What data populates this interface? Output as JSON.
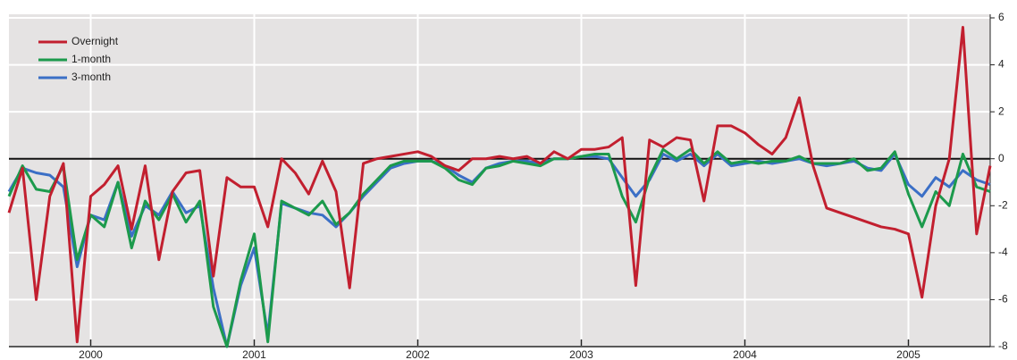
{
  "chart_data": {
    "type": "line",
    "x": [
      2000,
      2000.083,
      2000.167,
      2000.25,
      2000.333,
      2000.417,
      2000.5,
      2000.583,
      2000.667,
      2000.75,
      2000.833,
      2000.917,
      2001,
      2001.083,
      2001.167,
      2001.25,
      2001.333,
      2001.417,
      2001.5,
      2001.583,
      2001.667,
      2001.75,
      2001.833,
      2001.917,
      2002,
      2002.083,
      2002.167,
      2002.25,
      2002.333,
      2002.417,
      2002.5,
      2002.583,
      2002.667,
      2002.75,
      2002.833,
      2002.917,
      2003,
      2003.083,
      2003.167,
      2003.25,
      2003.333,
      2003.417,
      2003.5,
      2003.583,
      2003.667,
      2003.75,
      2003.833,
      2003.917,
      2004,
      2004.083,
      2004.167,
      2004.25,
      2004.333,
      2004.417,
      2004.5,
      2004.583,
      2004.667,
      2004.75,
      2004.833,
      2004.917,
      2005,
      2005.083,
      2005.167,
      2005.25,
      2005.333,
      2005.417,
      2005.5,
      2005.583,
      2005.667,
      2005.75,
      2005.833,
      2005.917,
      2006
    ],
    "series": [
      {
        "name": "Overnight",
        "color": "#c21f2f",
        "values": [
          -2.3,
          -0.4,
          -6.0,
          -1.6,
          -0.2,
          -7.8,
          -1.6,
          -1.1,
          -0.3,
          -3.0,
          -0.3,
          -4.3,
          -1.4,
          -0.6,
          -0.5,
          -5.0,
          -0.8,
          -1.2,
          -1.2,
          -2.9,
          0.0,
          -0.6,
          -1.5,
          -0.1,
          -1.4,
          -5.5,
          -0.2,
          0.0,
          0.1,
          0.2,
          0.3,
          0.1,
          -0.3,
          -0.5,
          0.0,
          0.0,
          0.1,
          0.0,
          0.1,
          -0.2,
          0.3,
          0.0,
          0.4,
          0.4,
          0.5,
          0.9,
          -5.4,
          0.8,
          0.5,
          0.9,
          0.8,
          -1.8,
          1.4,
          1.4,
          1.1,
          0.6,
          0.2,
          0.9,
          2.6,
          -0.3,
          -2.1,
          -2.3,
          -2.5,
          -2.7,
          -2.9,
          -3.0,
          -3.2,
          -5.9,
          -2.0,
          0.0,
          5.6,
          -3.2,
          -0.3
        ]
      },
      {
        "name": "1-month",
        "color": "#1c9a4c",
        "values": [
          -1.6,
          -0.3,
          -1.3,
          -1.4,
          -0.3,
          -4.3,
          -2.4,
          -2.9,
          -1.0,
          -3.8,
          -1.8,
          -2.6,
          -1.5,
          -2.7,
          -1.8,
          -6.3,
          -8.0,
          -5.2,
          -3.2,
          -7.8,
          -1.8,
          -2.1,
          -2.4,
          -1.8,
          -2.8,
          -2.3,
          -1.5,
          -0.9,
          -0.3,
          -0.1,
          -0.1,
          -0.1,
          -0.4,
          -0.9,
          -1.1,
          -0.4,
          -0.3,
          -0.1,
          -0.2,
          -0.3,
          0.0,
          0.0,
          0.1,
          0.2,
          0.2,
          -1.6,
          -2.7,
          -0.8,
          0.4,
          0.0,
          0.4,
          -0.2,
          0.3,
          -0.2,
          -0.1,
          -0.2,
          -0.1,
          -0.1,
          0.1,
          -0.2,
          -0.2,
          -0.2,
          0.0,
          -0.5,
          -0.4,
          0.3,
          -1.5,
          -2.9,
          -1.4,
          -2.0,
          0.2,
          -1.2,
          -1.4
        ]
      },
      {
        "name": "3-month",
        "color": "#3b6fc6",
        "values": [
          -1.4,
          -0.4,
          -0.6,
          -0.7,
          -1.2,
          -4.6,
          -2.4,
          -2.6,
          -1.0,
          -3.3,
          -2.0,
          -2.4,
          -1.4,
          -2.3,
          -2.0,
          -5.5,
          -8.0,
          -5.4,
          -3.8,
          -7.5,
          -1.9,
          -2.1,
          -2.3,
          -2.4,
          -2.9,
          -2.3,
          -1.6,
          -1.0,
          -0.4,
          -0.2,
          -0.1,
          -0.1,
          -0.3,
          -0.7,
          -1.0,
          -0.4,
          -0.2,
          -0.1,
          -0.1,
          -0.2,
          0.0,
          0.0,
          0.1,
          0.1,
          0.0,
          -0.8,
          -1.6,
          -0.9,
          0.2,
          -0.1,
          0.2,
          -0.3,
          0.2,
          -0.3,
          -0.2,
          -0.1,
          -0.2,
          -0.1,
          0.0,
          -0.2,
          -0.3,
          -0.2,
          -0.1,
          -0.4,
          -0.5,
          0.2,
          -1.1,
          -1.6,
          -0.8,
          -1.2,
          -0.5,
          -0.9,
          -1.1
        ]
      }
    ],
    "xlim": [
      2000,
      2006
    ],
    "xticks": [
      {
        "value": 2000.5,
        "label": "2000"
      },
      {
        "value": 2001.5,
        "label": "2001"
      },
      {
        "value": 2002.5,
        "label": "2002"
      },
      {
        "value": 2003.5,
        "label": "2003"
      },
      {
        "value": 2004.5,
        "label": "2004"
      },
      {
        "value": 2005.5,
        "label": "2005"
      }
    ],
    "ylim": [
      -8,
      6
    ],
    "yticks": [
      6,
      4,
      2,
      0,
      -2,
      -4,
      -6,
      -8
    ],
    "grid": true,
    "legend": "upper-left"
  }
}
